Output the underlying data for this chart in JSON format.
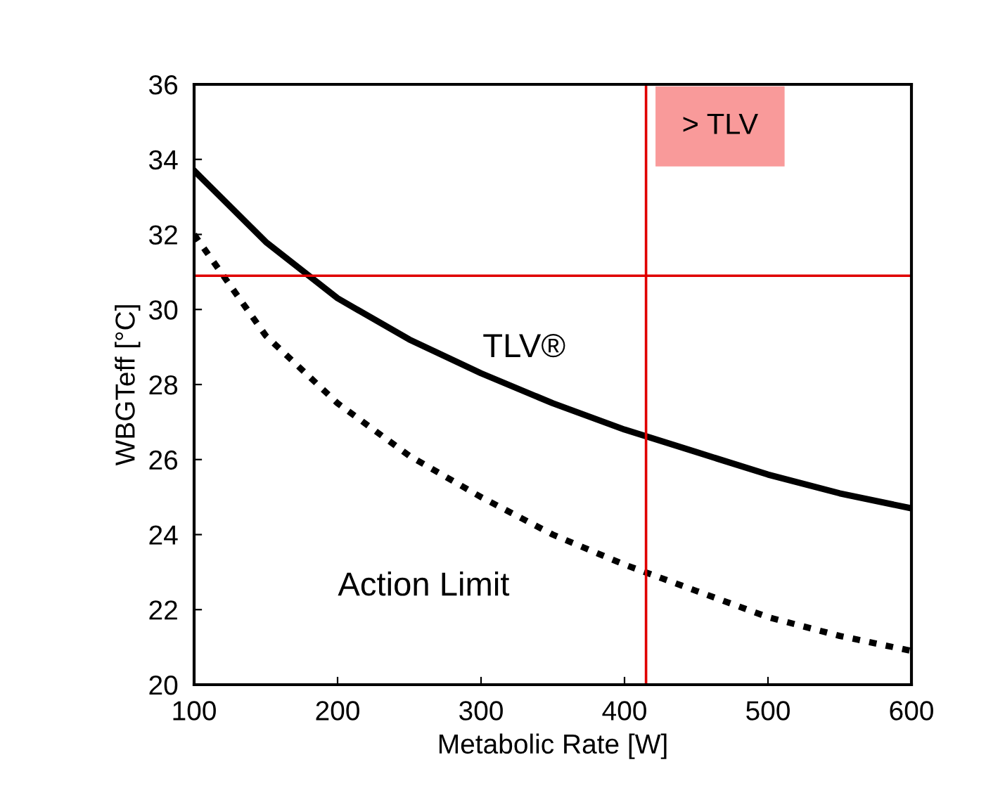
{
  "chart_data": {
    "type": "line",
    "xlabel": "Metabolic Rate [W]",
    "ylabel": "WBGTeff [°C]",
    "xlim": [
      100,
      600
    ],
    "xticks": [
      100,
      200,
      300,
      400,
      500,
      600
    ],
    "ylim": [
      20,
      36
    ],
    "yticks": [
      20,
      22,
      24,
      26,
      28,
      30,
      32,
      34,
      36
    ],
    "grid": false,
    "series": [
      {
        "name": "TLV®",
        "color": "#000000",
        "line_style": "solid",
        "x": [
          100,
          150,
          200,
          250,
          300,
          350,
          400,
          450,
          500,
          550,
          600
        ],
        "values": [
          33.7,
          31.8,
          30.3,
          29.2,
          28.3,
          27.5,
          26.8,
          26.2,
          25.6,
          25.1,
          24.7
        ]
      },
      {
        "name": "Action Limit",
        "color": "#000000",
        "line_style": "dashed",
        "x": [
          100,
          150,
          200,
          250,
          300,
          350,
          400,
          450,
          500,
          550,
          600
        ],
        "values": [
          32.0,
          29.3,
          27.5,
          26.1,
          25.0,
          24.0,
          23.2,
          22.5,
          21.8,
          21.3,
          20.9
        ]
      }
    ],
    "ref_lines": [
      {
        "axis": "y",
        "value": 30.9,
        "color": "#e00000"
      },
      {
        "axis": "x",
        "value": 415,
        "color": "#e00000"
      }
    ],
    "annotations": [
      "> TLV"
    ]
  }
}
